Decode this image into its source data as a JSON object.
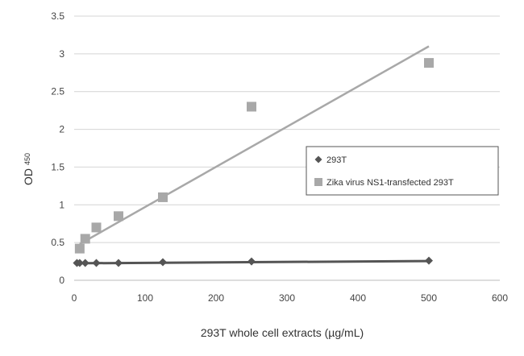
{
  "chart_data": {
    "type": "scatter",
    "xlabel": "293T whole cell extracts (µg/mL)",
    "ylabel": "OD",
    "ylabel_sub": "450",
    "xlim": [
      0,
      600
    ],
    "ylim": [
      0,
      3.5
    ],
    "xticks": [
      0,
      100,
      200,
      300,
      400,
      500,
      600
    ],
    "yticks": [
      0,
      0.5,
      1,
      1.5,
      2,
      2.5,
      3,
      3.5
    ],
    "grid": "horizontal",
    "legend_position": "right",
    "series": [
      {
        "name": "293T",
        "marker": "diamond",
        "color": "#555555",
        "x": [
          3.9,
          7.8,
          15.6,
          31.25,
          62.5,
          125,
          250,
          500
        ],
        "y": [
          0.23,
          0.23,
          0.23,
          0.23,
          0.23,
          0.24,
          0.25,
          0.26
        ],
        "trendline": [
          [
            0,
            0.225
          ],
          [
            500,
            0.255
          ]
        ]
      },
      {
        "name": "Zika virus NS1-transfected 293T",
        "marker": "square",
        "color": "#a8a8a8",
        "x": [
          7.8,
          15.6,
          31.25,
          62.5,
          125,
          250,
          500
        ],
        "y": [
          0.42,
          0.55,
          0.7,
          0.85,
          1.1,
          2.3,
          2.88
        ],
        "trendline": [
          [
            7.8,
            0.48
          ],
          [
            500,
            3.1
          ]
        ]
      }
    ]
  }
}
